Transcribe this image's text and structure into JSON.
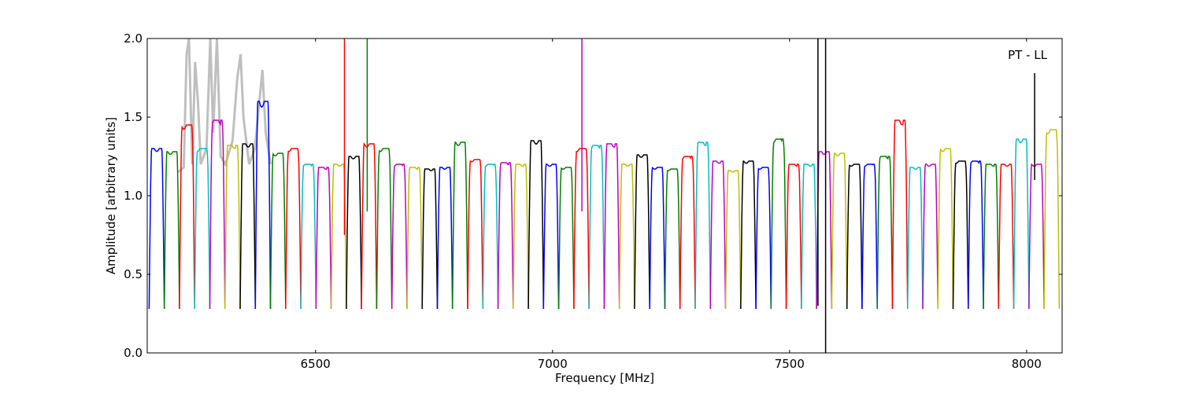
{
  "chart_data": {
    "type": "line",
    "title": "",
    "xlabel": "Frequency [MHz]",
    "ylabel": "Amplitude [arbitrary units]",
    "annotation": "PT - LL",
    "xlim": [
      6145,
      8075
    ],
    "ylim": [
      0.0,
      2.0
    ],
    "xticks": [
      {
        "value": 6500,
        "label": "6500"
      },
      {
        "value": 7000,
        "label": "7000"
      },
      {
        "value": 7500,
        "label": "7500"
      },
      {
        "value": 8000,
        "label": "8000"
      }
    ],
    "yticks": [
      {
        "value": 0.0,
        "label": "0.0"
      },
      {
        "value": 0.5,
        "label": "0.5"
      },
      {
        "value": 1.0,
        "label": "1.0"
      },
      {
        "value": 1.5,
        "label": "1.5"
      },
      {
        "value": 2.0,
        "label": "2.0"
      }
    ],
    "grid": false,
    "legend": false,
    "channel_width_mhz": 32,
    "colors": [
      "#0000ff",
      "#008000",
      "#ff0000",
      "#00bfbf",
      "#bf00bf",
      "#bfbf00",
      "#000000"
    ],
    "background_trace_color": "#bfbfbf",
    "background_trace": [
      {
        "x": 6210,
        "y": 1.15
      },
      {
        "x": 6222,
        "y": 1.18
      },
      {
        "x": 6228,
        "y": 1.9
      },
      {
        "x": 6233,
        "y": 2.0
      },
      {
        "x": 6240,
        "y": 1.2
      },
      {
        "x": 6246,
        "y": 1.85
      },
      {
        "x": 6252,
        "y": 1.6
      },
      {
        "x": 6258,
        "y": 1.2
      },
      {
        "x": 6270,
        "y": 1.3
      },
      {
        "x": 6278,
        "y": 2.0
      },
      {
        "x": 6284,
        "y": 1.4
      },
      {
        "x": 6292,
        "y": 2.0
      },
      {
        "x": 6300,
        "y": 1.25
      },
      {
        "x": 6310,
        "y": 1.2
      },
      {
        "x": 6325,
        "y": 1.35
      },
      {
        "x": 6335,
        "y": 1.75
      },
      {
        "x": 6342,
        "y": 1.9
      },
      {
        "x": 6348,
        "y": 1.5
      },
      {
        "x": 6360,
        "y": 1.2
      },
      {
        "x": 6372,
        "y": 1.3
      },
      {
        "x": 6388,
        "y": 1.8
      },
      {
        "x": 6395,
        "y": 1.4
      },
      {
        "x": 6405,
        "y": 1.2
      }
    ],
    "channels": [
      {
        "center": 6165,
        "peak": 1.3,
        "color": "#0000ff"
      },
      {
        "center": 6197,
        "peak": 1.28,
        "color": "#008000"
      },
      {
        "center": 6229,
        "peak": 1.45,
        "color": "#ff0000"
      },
      {
        "center": 6261,
        "peak": 1.3,
        "color": "#00bfbf"
      },
      {
        "center": 6293,
        "peak": 1.48,
        "color": "#bf00bf"
      },
      {
        "center": 6325,
        "peak": 1.32,
        "color": "#bfbf00"
      },
      {
        "center": 6357,
        "peak": 1.33,
        "color": "#000000"
      },
      {
        "center": 6389,
        "peak": 1.6,
        "color": "#0000ff"
      },
      {
        "center": 6421,
        "peak": 1.27,
        "color": "#008000"
      },
      {
        "center": 6453,
        "peak": 1.3,
        "color": "#ff0000"
      },
      {
        "center": 6485,
        "peak": 1.2,
        "color": "#00bfbf"
      },
      {
        "center": 6517,
        "peak": 1.18,
        "color": "#bf00bf"
      },
      {
        "center": 6549,
        "peak": 1.2,
        "color": "#bfbf00"
      },
      {
        "center": 6581,
        "peak": 1.25,
        "color": "#000000"
      },
      {
        "center": 6613,
        "peak": 1.33,
        "color": "#ff0000"
      },
      {
        "center": 6645,
        "peak": 1.3,
        "color": "#008000"
      },
      {
        "center": 6677,
        "peak": 1.2,
        "color": "#bf00bf"
      },
      {
        "center": 6709,
        "peak": 1.18,
        "color": "#bfbf00"
      },
      {
        "center": 6741,
        "peak": 1.17,
        "color": "#000000"
      },
      {
        "center": 6773,
        "peak": 1.18,
        "color": "#0000ff"
      },
      {
        "center": 6805,
        "peak": 1.34,
        "color": "#008000"
      },
      {
        "center": 6837,
        "peak": 1.23,
        "color": "#ff0000"
      },
      {
        "center": 6869,
        "peak": 1.2,
        "color": "#00bfbf"
      },
      {
        "center": 6901,
        "peak": 1.21,
        "color": "#bf00bf"
      },
      {
        "center": 6933,
        "peak": 1.2,
        "color": "#bfbf00"
      },
      {
        "center": 6965,
        "peak": 1.35,
        "color": "#000000"
      },
      {
        "center": 6997,
        "peak": 1.2,
        "color": "#0000ff"
      },
      {
        "center": 7029,
        "peak": 1.18,
        "color": "#008000"
      },
      {
        "center": 7061,
        "peak": 1.3,
        "color": "#ff0000"
      },
      {
        "center": 7093,
        "peak": 1.32,
        "color": "#00bfbf"
      },
      {
        "center": 7125,
        "peak": 1.33,
        "color": "#bf00bf"
      },
      {
        "center": 7157,
        "peak": 1.2,
        "color": "#bfbf00"
      },
      {
        "center": 7189,
        "peak": 1.26,
        "color": "#000000"
      },
      {
        "center": 7221,
        "peak": 1.18,
        "color": "#0000ff"
      },
      {
        "center": 7253,
        "peak": 1.17,
        "color": "#008000"
      },
      {
        "center": 7285,
        "peak": 1.25,
        "color": "#ff0000"
      },
      {
        "center": 7317,
        "peak": 1.34,
        "color": "#00bfbf"
      },
      {
        "center": 7349,
        "peak": 1.22,
        "color": "#bf00bf"
      },
      {
        "center": 7381,
        "peak": 1.16,
        "color": "#bfbf00"
      },
      {
        "center": 7413,
        "peak": 1.22,
        "color": "#000000"
      },
      {
        "center": 7445,
        "peak": 1.18,
        "color": "#0000ff"
      },
      {
        "center": 7477,
        "peak": 1.36,
        "color": "#008000"
      },
      {
        "center": 7509,
        "peak": 1.2,
        "color": "#ff0000"
      },
      {
        "center": 7541,
        "peak": 1.2,
        "color": "#00bfbf"
      },
      {
        "center": 7573,
        "peak": 1.28,
        "color": "#bf00bf"
      },
      {
        "center": 7605,
        "peak": 1.27,
        "color": "#bfbf00"
      },
      {
        "center": 7637,
        "peak": 1.2,
        "color": "#000000"
      },
      {
        "center": 7669,
        "peak": 1.2,
        "color": "#0000ff"
      },
      {
        "center": 7701,
        "peak": 1.25,
        "color": "#008000"
      },
      {
        "center": 7733,
        "peak": 1.48,
        "color": "#ff0000"
      },
      {
        "center": 7765,
        "peak": 1.18,
        "color": "#00bfbf"
      },
      {
        "center": 7797,
        "peak": 1.2,
        "color": "#bf00bf"
      },
      {
        "center": 7829,
        "peak": 1.3,
        "color": "#bfbf00"
      },
      {
        "center": 7861,
        "peak": 1.22,
        "color": "#000000"
      },
      {
        "center": 7893,
        "peak": 1.22,
        "color": "#0000ff"
      },
      {
        "center": 7925,
        "peak": 1.2,
        "color": "#008000"
      },
      {
        "center": 7957,
        "peak": 1.2,
        "color": "#ff0000"
      },
      {
        "center": 7989,
        "peak": 1.36,
        "color": "#00bfbf"
      },
      {
        "center": 8021,
        "peak": 1.2,
        "color": "#bf00bf"
      },
      {
        "center": 8053,
        "peak": 1.42,
        "color": "#bfbf00"
      }
    ],
    "spikes": [
      {
        "x": 6561,
        "y_from": 0.75,
        "y_to": 2.0,
        "color": "#ff0000"
      },
      {
        "x": 6609,
        "y_from": 0.9,
        "y_to": 2.0,
        "color": "#008000"
      },
      {
        "x": 7062,
        "y_from": 0.9,
        "y_to": 2.0,
        "color": "#bf00bf"
      },
      {
        "x": 7560,
        "y_from": 0.3,
        "y_to": 2.0,
        "color": "#000000"
      },
      {
        "x": 7576,
        "y_from": 0.0,
        "y_to": 2.0,
        "color": "#000000"
      },
      {
        "x": 8017,
        "y_from": 1.1,
        "y_to": 1.78,
        "color": "#000000"
      }
    ]
  }
}
